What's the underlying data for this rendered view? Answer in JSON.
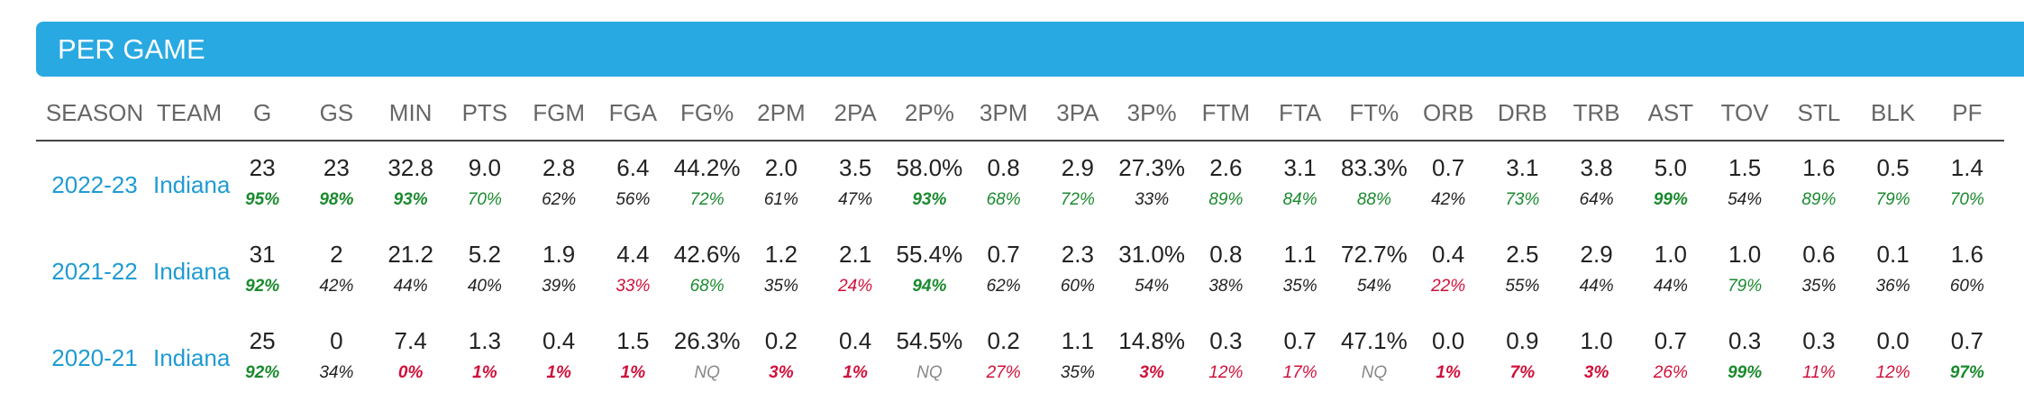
{
  "section": {
    "title": "PER GAME"
  },
  "columns": [
    "SEASON",
    "TEAM",
    "G",
    "GS",
    "MIN",
    "PTS",
    "FGM",
    "FGA",
    "FG%",
    "2PM",
    "2PA",
    "2P%",
    "3PM",
    "3PA",
    "3P%",
    "FTM",
    "FTA",
    "FT%",
    "ORB",
    "DRB",
    "TRB",
    "AST",
    "TOV",
    "STL",
    "BLK",
    "PF"
  ],
  "colors": {
    "accent": "#29a9e1",
    "good": "#1a8a2e",
    "bad": "#d0103a",
    "neutral": "#222222",
    "nq": "#888888"
  },
  "rows": [
    {
      "season": "2022-23",
      "team": "Indiana",
      "values": [
        "23",
        "23",
        "32.8",
        "9.0",
        "2.8",
        "6.4",
        "44.2%",
        "2.0",
        "3.5",
        "58.0%",
        "0.8",
        "2.9",
        "27.3%",
        "2.6",
        "3.1",
        "83.3%",
        "0.7",
        "3.1",
        "3.8",
        "5.0",
        "1.5",
        "1.6",
        "0.5",
        "1.4"
      ],
      "pcts": [
        "95%",
        "98%",
        "93%",
        "70%",
        "62%",
        "56%",
        "72%",
        "61%",
        "47%",
        "93%",
        "68%",
        "72%",
        "33%",
        "89%",
        "84%",
        "88%",
        "42%",
        "73%",
        "64%",
        "99%",
        "54%",
        "89%",
        "79%",
        "70%"
      ],
      "tones": [
        "gb",
        "gb",
        "gb",
        "g",
        "b",
        "b",
        "g",
        "b",
        "b",
        "gb",
        "g",
        "g",
        "b",
        "g",
        "g",
        "g",
        "b",
        "g",
        "b",
        "gb",
        "b",
        "g",
        "g",
        "g"
      ]
    },
    {
      "season": "2021-22",
      "team": "Indiana",
      "values": [
        "31",
        "2",
        "21.2",
        "5.2",
        "1.9",
        "4.4",
        "42.6%",
        "1.2",
        "2.1",
        "55.4%",
        "0.7",
        "2.3",
        "31.0%",
        "0.8",
        "1.1",
        "72.7%",
        "0.4",
        "2.5",
        "2.9",
        "1.0",
        "1.0",
        "0.6",
        "0.1",
        "1.6"
      ],
      "pcts": [
        "92%",
        "42%",
        "44%",
        "40%",
        "39%",
        "33%",
        "68%",
        "35%",
        "24%",
        "94%",
        "62%",
        "60%",
        "54%",
        "38%",
        "35%",
        "54%",
        "22%",
        "55%",
        "44%",
        "44%",
        "79%",
        "35%",
        "36%",
        "60%"
      ],
      "tones": [
        "gb",
        "b",
        "b",
        "b",
        "b",
        "r",
        "g",
        "b",
        "r",
        "gb",
        "b",
        "b",
        "b",
        "b",
        "b",
        "b",
        "r",
        "b",
        "b",
        "b",
        "g",
        "b",
        "b",
        "b"
      ]
    },
    {
      "season": "2020-21",
      "team": "Indiana",
      "values": [
        "25",
        "0",
        "7.4",
        "1.3",
        "0.4",
        "1.5",
        "26.3%",
        "0.2",
        "0.4",
        "54.5%",
        "0.2",
        "1.1",
        "14.8%",
        "0.3",
        "0.7",
        "47.1%",
        "0.0",
        "0.9",
        "1.0",
        "0.7",
        "0.3",
        "0.3",
        "0.0",
        "0.7"
      ],
      "pcts": [
        "92%",
        "34%",
        "0%",
        "1%",
        "1%",
        "1%",
        "NQ",
        "3%",
        "1%",
        "NQ",
        "27%",
        "35%",
        "3%",
        "12%",
        "17%",
        "NQ",
        "1%",
        "7%",
        "3%",
        "26%",
        "99%",
        "11%",
        "12%",
        "97%"
      ],
      "tones": [
        "gb",
        "b",
        "rb",
        "rb",
        "rb",
        "rb",
        "n",
        "rb",
        "rb",
        "n",
        "r",
        "b",
        "rb",
        "r",
        "r",
        "n",
        "rb",
        "rb",
        "rb",
        "r",
        "gb",
        "r",
        "r",
        "gb"
      ]
    }
  ]
}
